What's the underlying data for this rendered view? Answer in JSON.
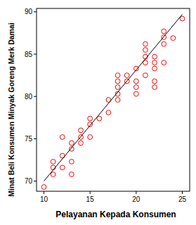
{
  "chart_data": {
    "type": "scatter",
    "x_label": "Pelayanan Kepada Konsumen",
    "y_label": "Minat Beli Konsumen Minyak Goreng Merk Damai",
    "xlim": [
      9.2,
      25.8
    ],
    "ylim": [
      68.8,
      90.4
    ],
    "xticks": [
      10,
      15,
      20,
      25
    ],
    "yticks": [
      70,
      75,
      80,
      85,
      90
    ],
    "grid": false,
    "series": [
      {
        "type": "scatter",
        "color": "#ff0000",
        "marker": "circle-open",
        "x": [
          10,
          11,
          11,
          11,
          12,
          12,
          12,
          13,
          13,
          13,
          13,
          14,
          14,
          14,
          15,
          15,
          15,
          16,
          17,
          17,
          18,
          18,
          18,
          18,
          18,
          19,
          19,
          20,
          20,
          20,
          20,
          21,
          21,
          21,
          21,
          21,
          22,
          22,
          22,
          22,
          22,
          23,
          23,
          23,
          23,
          24,
          25
        ],
        "values": [
          69.3,
          70.8,
          71.6,
          72.3,
          71.6,
          73.0,
          75.2,
          70.8,
          72.3,
          73.8,
          74.5,
          74.5,
          75.2,
          76.0,
          75.2,
          76.7,
          77.4,
          77.4,
          78.1,
          79.6,
          79.6,
          80.3,
          81.1,
          81.8,
          82.5,
          81.8,
          82.5,
          80.3,
          81.1,
          81.8,
          83.3,
          82.5,
          84.0,
          84.7,
          85.5,
          86.2,
          81.1,
          81.8,
          83.3,
          84.0,
          84.7,
          84.0,
          86.2,
          87.0,
          87.7,
          86.9,
          89.2
        ]
      },
      {
        "type": "line",
        "color": "#000000",
        "line_style": "solid",
        "x": [
          10,
          25
        ],
        "values": [
          70.0,
          89.7
        ]
      }
    ]
  }
}
